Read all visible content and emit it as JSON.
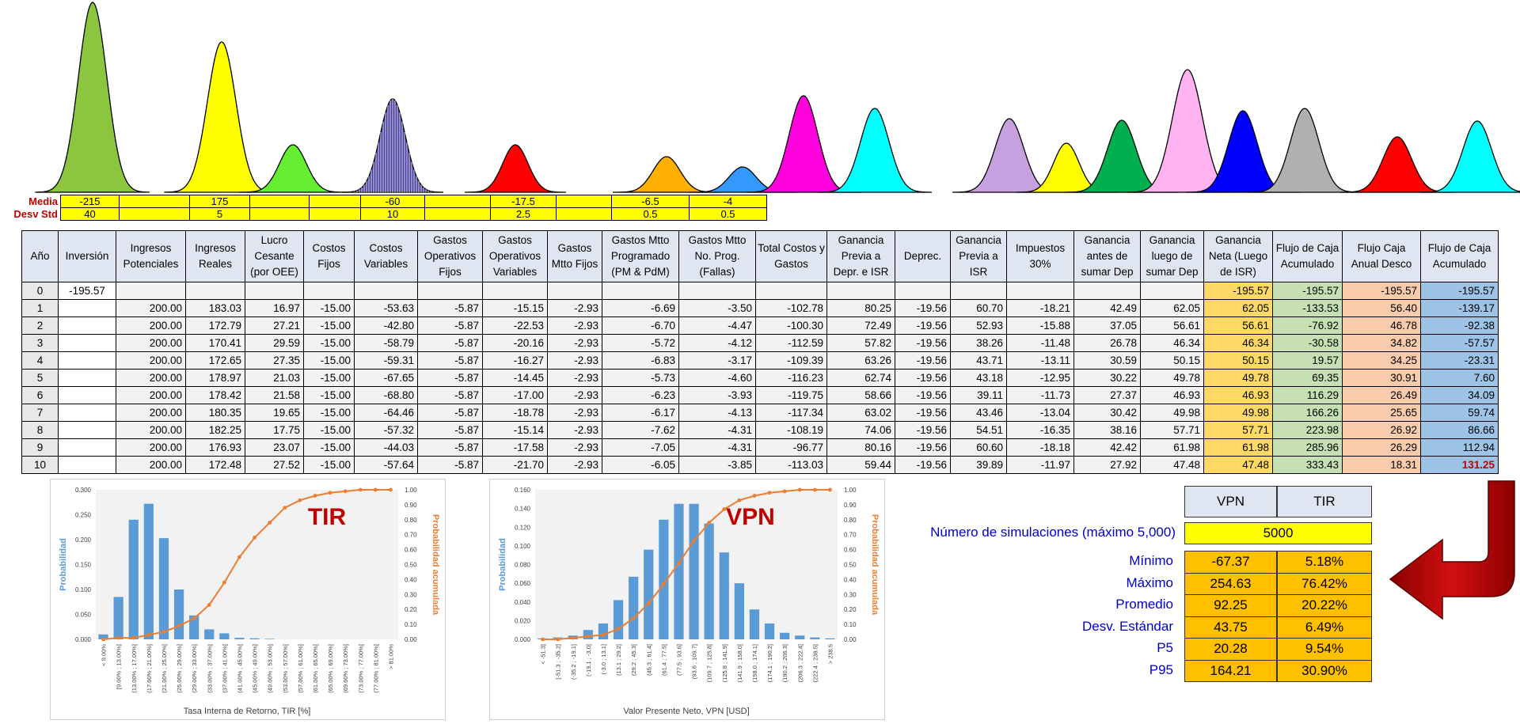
{
  "dist_colors": [
    "#8cc63f",
    "#ffff00",
    "#66ee33",
    "#4a3fa0",
    "#ff0000",
    "#ffb000",
    "#3399ff",
    "#ff00dd",
    "#00ffff",
    "#c7a0e0",
    "#ffff00",
    "#00b050",
    "#ffb3f0",
    "#0000ff",
    "#b0b0b0",
    "#ff0000",
    "#00ffff"
  ],
  "params": {
    "media_label": "Media",
    "desv_label": "Desv Std",
    "media": [
      "-215",
      "",
      "175",
      "",
      "",
      "-60",
      "",
      "-17.5",
      "",
      "-6.5",
      "-4"
    ],
    "desv": [
      "40",
      "",
      "5",
      "",
      "",
      "10",
      "",
      "2.5",
      "",
      "0.5",
      "0.5"
    ]
  },
  "table": {
    "headers": [
      "Año",
      "Inversión",
      "Ingresos Potenciales",
      "Ingresos Reales",
      "Lucro Cesante (por OEE)",
      "Costos Fijos",
      "Costos Variables",
      "Gastos Operativos Fijos",
      "Gastos Operativos Variables",
      "Gastos Mtto Fijos",
      "Gastos Mtto Programado (PM & PdM)",
      "Gastos Mtto No. Prog. (Fallas)",
      "Total Costos y Gastos",
      "Ganancia Previa a Depr. e ISR",
      "Deprec.",
      "Ganancia Previa a ISR",
      "Impuestos 30%",
      "Ganancia antes de sumar Dep",
      "Ganancia luego de sumar Dep",
      "Ganancia Neta (Luego de ISR)",
      "Flujo de Caja Acumulado",
      "Flujo Caja Anual Desco",
      "Flujo de Caja Acumulado"
    ],
    "rows": [
      [
        "0",
        "-195.57",
        "",
        "",
        "",
        "",
        "",
        "",
        "",
        "",
        "",
        "",
        "",
        "",
        "",
        "",
        "",
        "",
        "",
        "-195.57",
        "-195.57",
        "-195.57",
        "-195.57"
      ],
      [
        "1",
        "",
        "200.00",
        "183.03",
        "16.97",
        "-15.00",
        "-53.63",
        "-5.87",
        "-15.15",
        "-2.93",
        "-6.69",
        "-3.50",
        "-102.78",
        "80.25",
        "-19.56",
        "60.70",
        "-18.21",
        "42.49",
        "62.05",
        "62.05",
        "-133.53",
        "56.40",
        "-139.17"
      ],
      [
        "2",
        "",
        "200.00",
        "172.79",
        "27.21",
        "-15.00",
        "-42.80",
        "-5.87",
        "-22.53",
        "-2.93",
        "-6.70",
        "-4.47",
        "-100.30",
        "72.49",
        "-19.56",
        "52.93",
        "-15.88",
        "37.05",
        "56.61",
        "56.61",
        "-76.92",
        "46.78",
        "-92.38"
      ],
      [
        "3",
        "",
        "200.00",
        "170.41",
        "29.59",
        "-15.00",
        "-58.79",
        "-5.87",
        "-20.16",
        "-2.93",
        "-5.72",
        "-4.12",
        "-112.59",
        "57.82",
        "-19.56",
        "38.26",
        "-11.48",
        "26.78",
        "46.34",
        "46.34",
        "-30.58",
        "34.82",
        "-57.57"
      ],
      [
        "4",
        "",
        "200.00",
        "172.65",
        "27.35",
        "-15.00",
        "-59.31",
        "-5.87",
        "-16.27",
        "-2.93",
        "-6.83",
        "-3.17",
        "-109.39",
        "63.26",
        "-19.56",
        "43.71",
        "-13.11",
        "30.59",
        "50.15",
        "50.15",
        "19.57",
        "34.25",
        "-23.31"
      ],
      [
        "5",
        "",
        "200.00",
        "178.97",
        "21.03",
        "-15.00",
        "-67.65",
        "-5.87",
        "-14.45",
        "-2.93",
        "-5.73",
        "-4.60",
        "-116.23",
        "62.74",
        "-19.56",
        "43.18",
        "-12.95",
        "30.22",
        "49.78",
        "49.78",
        "69.35",
        "30.91",
        "7.60"
      ],
      [
        "6",
        "",
        "200.00",
        "178.42",
        "21.58",
        "-15.00",
        "-68.80",
        "-5.87",
        "-17.00",
        "-2.93",
        "-6.23",
        "-3.93",
        "-119.75",
        "58.66",
        "-19.56",
        "39.11",
        "-11.73",
        "27.37",
        "46.93",
        "46.93",
        "116.29",
        "26.49",
        "34.09"
      ],
      [
        "7",
        "",
        "200.00",
        "180.35",
        "19.65",
        "-15.00",
        "-64.46",
        "-5.87",
        "-18.78",
        "-2.93",
        "-6.17",
        "-4.13",
        "-117.34",
        "63.02",
        "-19.56",
        "43.46",
        "-13.04",
        "30.42",
        "49.98",
        "49.98",
        "166.26",
        "25.65",
        "59.74"
      ],
      [
        "8",
        "",
        "200.00",
        "182.25",
        "17.75",
        "-15.00",
        "-57.32",
        "-5.87",
        "-15.14",
        "-2.93",
        "-7.62",
        "-4.31",
        "-108.19",
        "74.06",
        "-19.56",
        "54.51",
        "-16.35",
        "38.16",
        "57.71",
        "57.71",
        "223.98",
        "26.92",
        "86.66"
      ],
      [
        "9",
        "",
        "200.00",
        "176.93",
        "23.07",
        "-15.00",
        "-44.03",
        "-5.87",
        "-17.58",
        "-2.93",
        "-7.05",
        "-4.31",
        "-96.77",
        "80.16",
        "-19.56",
        "60.60",
        "-18.18",
        "42.42",
        "61.98",
        "61.98",
        "285.96",
        "26.29",
        "112.94"
      ],
      [
        "10",
        "",
        "200.00",
        "172.48",
        "27.52",
        "-15.00",
        "-57.64",
        "-5.87",
        "-21.70",
        "-2.93",
        "-6.05",
        "-3.85",
        "-113.03",
        "59.44",
        "-19.56",
        "39.89",
        "-11.97",
        "27.92",
        "47.48",
        "47.48",
        "333.43",
        "18.31",
        "131.25"
      ]
    ]
  },
  "chart_data": [
    {
      "type": "bar",
      "title": "TIR",
      "xlabel": "Tasa Interna de Retorno, TIR [%]",
      "ylabel": "Probabilidad",
      "y2label": "Probabilidad acumulada",
      "ylim": [
        0,
        0.3
      ],
      "y2lim": [
        0,
        1.0
      ],
      "y_ticks": [
        "0.000",
        "0.050",
        "0.100",
        "0.150",
        "0.200",
        "0.250",
        "0.300"
      ],
      "y2_ticks": [
        "0.00",
        "0.10",
        "0.20",
        "0.30",
        "0.40",
        "0.50",
        "0.60",
        "0.70",
        "0.80",
        "0.90",
        "1.00"
      ],
      "categories": [
        "< 9.00%",
        "[9.00% ; 13.00%]",
        "(13.00% ; 17.00%]",
        "(17.00% ; 21.00%]",
        "(21.00% ; 25.00%]",
        "(25.00% ; 29.00%]",
        "(29.00% ; 33.00%]",
        "(33.00% ; 37.00%]",
        "(37.00% ; 41.00%]",
        "(41.00% ; 45.00%]",
        "(45.00% ; 49.00%]",
        "(49.00% ; 53.00%]",
        "(53.00% ; 57.00%]",
        "(57.00% ; 61.00%]",
        "(61.00% ; 65.00%]",
        "(65.00% ; 69.00%]",
        "(69.00% ; 73.00%]",
        "(73.00% ; 77.00%]",
        "(77.00% ; 81.00%]",
        "> 81.00%"
      ],
      "values": [
        0.01,
        0.085,
        0.24,
        0.272,
        0.203,
        0.1,
        0.048,
        0.02,
        0.012,
        0.003,
        0.002,
        0.001,
        0,
        0,
        0,
        0,
        0,
        0,
        0,
        0
      ],
      "cumulative": [
        0.0,
        0.01,
        0.01,
        0.03,
        0.05,
        0.09,
        0.14,
        0.23,
        0.38,
        0.55,
        0.68,
        0.78,
        0.88,
        0.93,
        0.96,
        0.98,
        0.99,
        1.0,
        1.0,
        1.0
      ],
      "bar_color": "#5b9bd5",
      "line_color": "#ed7d31",
      "title_color": "#c00000"
    },
    {
      "type": "bar",
      "title": "VPN",
      "xlabel": "Valor Presente Neto, VPN [USD]",
      "ylabel": "Probabilidad",
      "y2label": "Probabilidad acumulada",
      "ylim": [
        0,
        0.16
      ],
      "y2lim": [
        0,
        1.0
      ],
      "y_ticks": [
        "0.000",
        "0.020",
        "0.040",
        "0.060",
        "0.080",
        "0.100",
        "0.120",
        "0.140",
        "0.160"
      ],
      "y2_ticks": [
        "0.00",
        "0.10",
        "0.20",
        "0.30",
        "0.40",
        "0.50",
        "0.60",
        "0.70",
        "0.80",
        "0.90",
        "1.00"
      ],
      "categories": [
        "< -51.3]",
        "[-51.3 ; -35.2]",
        "(-35.2 ; -19.1]",
        "(-19.1 ; -3.0]",
        "(-3.0 ; 13.1]",
        "(13.1 ; 29.2]",
        "(29.2 ; 45.3]",
        "(45.3 ; 61.4]",
        "(61.4 ; 77.5]",
        "(77.5 ; 93.6]",
        "(93.6 ; 109.7]",
        "(109.7 ; 125.8]",
        "(125.8 ; 141.9]",
        "(141.9 ; 158.0]",
        "(158.0 ; 174.1]",
        "(174.1 ; 190.2]",
        "(190.2 ; 206.3]",
        "(206.3 ; 222.4]",
        "(222.4 ; 238.5]",
        "> 238.5"
      ],
      "values": [
        0.001,
        0.002,
        0.004,
        0.01,
        0.017,
        0.042,
        0.067,
        0.096,
        0.128,
        0.145,
        0.145,
        0.124,
        0.093,
        0.06,
        0.032,
        0.017,
        0.007,
        0.004,
        0.002,
        0.001
      ],
      "cumulative": [
        0.0,
        0.0,
        0.01,
        0.02,
        0.03,
        0.07,
        0.14,
        0.24,
        0.37,
        0.51,
        0.66,
        0.78,
        0.87,
        0.93,
        0.96,
        0.98,
        0.99,
        1.0,
        1.0,
        1.0
      ],
      "bar_color": "#5b9bd5",
      "line_color": "#ed7d31",
      "title_color": "#c00000"
    }
  ],
  "stats": {
    "col_vpn": "VPN",
    "col_tir": "TIR",
    "sim_label": "Número de simulaciones (máximo 5,000)",
    "sim_value": "5000",
    "rows": [
      {
        "label": "Mínimo",
        "vpn": "-67.37",
        "tir": "5.18%"
      },
      {
        "label": "Máximo",
        "vpn": "254.63",
        "tir": "76.42%"
      },
      {
        "label": "Promedio",
        "vpn": "92.25",
        "tir": "20.22%"
      },
      {
        "label": "Desv. Estándar",
        "vpn": "43.75",
        "tir": "6.49%"
      },
      {
        "label": "P5",
        "vpn": "20.28",
        "tir": "9.54%"
      },
      {
        "label": "P95",
        "vpn": "164.21",
        "tir": "30.90%"
      }
    ]
  }
}
